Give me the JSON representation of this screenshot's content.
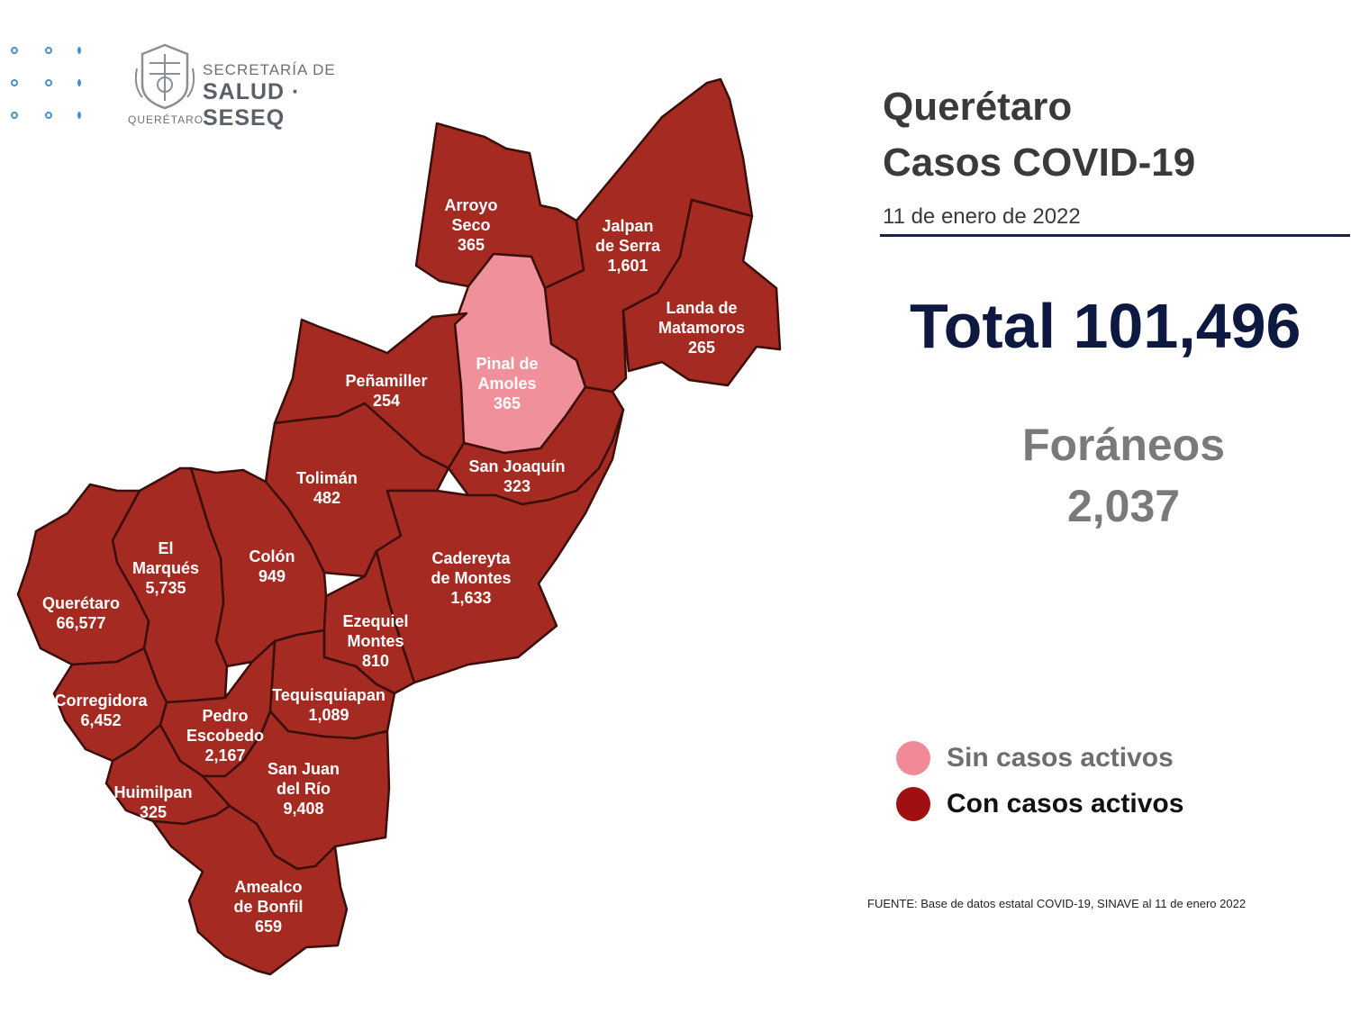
{
  "header": {
    "logo_line1": "SECRETARÍA DE",
    "logo_line2": "SALUD · SESEQ",
    "logo_sub": "QUERÉTARO"
  },
  "title": {
    "line1": "Querétaro",
    "line2": "Casos COVID-19",
    "date": "11 de enero de 2022"
  },
  "total_label": "Total 101,496",
  "foraneos": {
    "label": "Foráneos",
    "value": "2,037"
  },
  "legend": [
    {
      "label": "Sin casos activos",
      "color": "#f08a96",
      "text_color": "#6e6e6e"
    },
    {
      "label": "Con casos activos",
      "color": "#a01010",
      "text_color": "#111111"
    }
  ],
  "source": "FUENTE: Base de datos estatal COVID-19, SINAVE al 11 de enero 2022",
  "colors": {
    "active": "#a52a22",
    "no_active": "#f0909b",
    "border": "#3a0e0a"
  },
  "municipalities": [
    {
      "id": "arroyo-seco",
      "lines": [
        "Arroyo",
        "Seco",
        "365"
      ],
      "active": true
    },
    {
      "id": "jalpan",
      "lines": [
        "Jalpan",
        "de Serra",
        "1,601"
      ],
      "active": true
    },
    {
      "id": "landa",
      "lines": [
        "Landa de",
        "Matamoros",
        "265"
      ],
      "active": true
    },
    {
      "id": "pinal",
      "lines": [
        "Pinal de",
        "Amoles",
        "365"
      ],
      "active": false
    },
    {
      "id": "penamiller",
      "lines": [
        "Peñamiller",
        "254"
      ],
      "active": true
    },
    {
      "id": "san-joaquin",
      "lines": [
        "San Joaquín",
        "323"
      ],
      "active": true
    },
    {
      "id": "toliman",
      "lines": [
        "Tolimán",
        "482"
      ],
      "active": true
    },
    {
      "id": "cadereyta",
      "lines": [
        "Cadereyta",
        "de Montes",
        "1,633"
      ],
      "active": true
    },
    {
      "id": "colon",
      "lines": [
        "Colón",
        "949"
      ],
      "active": true
    },
    {
      "id": "el-marques",
      "lines": [
        "El",
        "Marqués",
        "5,735"
      ],
      "active": true
    },
    {
      "id": "queretaro",
      "lines": [
        "Querétaro",
        "66,577"
      ],
      "active": true
    },
    {
      "id": "ezequiel-montes",
      "lines": [
        "Ezequiel",
        "Montes",
        "810"
      ],
      "active": true
    },
    {
      "id": "tequisquiapan",
      "lines": [
        "Tequisquiapan",
        "1,089"
      ],
      "active": true
    },
    {
      "id": "corregidora",
      "lines": [
        "Corregidora",
        "6,452"
      ],
      "active": true
    },
    {
      "id": "pedro-escobedo",
      "lines": [
        "Pedro",
        "Escobedo",
        "2,167"
      ],
      "active": true
    },
    {
      "id": "san-juan-del-rio",
      "lines": [
        "San Juan",
        "del Río",
        "9,408"
      ],
      "active": true
    },
    {
      "id": "huimilpan",
      "lines": [
        "Huimilpan",
        "325"
      ],
      "active": true
    },
    {
      "id": "amealco",
      "lines": [
        "Amealco",
        "de Bonfil",
        "659"
      ],
      "active": true
    }
  ]
}
